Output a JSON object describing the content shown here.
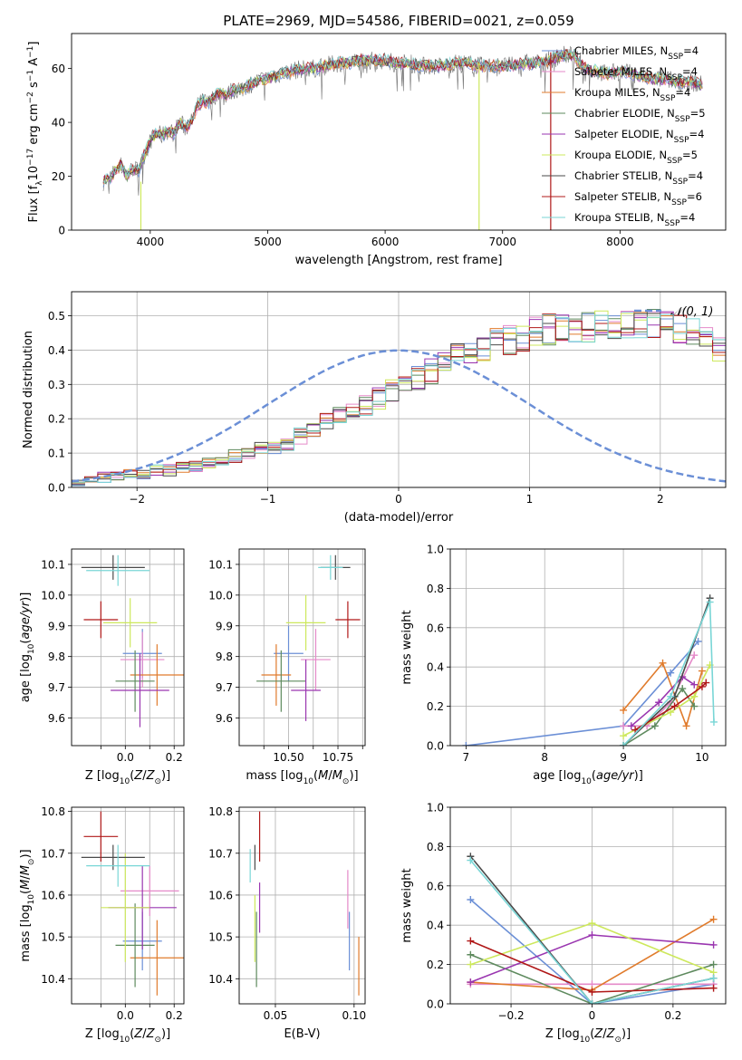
{
  "figure_title": "PLATE=2969, MJD=54586, FIBERID=0021, z=0.059",
  "colors": {
    "Chabrier MILES": "#6b8fd6",
    "Salpeter MILES": "#e58ac9",
    "Kroupa MILES": "#e07b2c",
    "Chabrier ELODIE": "#5e8a5e",
    "Salpeter ELODIE": "#9a36b0",
    "Kroupa ELODIE": "#cde85c",
    "Chabrier STELIB": "#4a4a4a",
    "Salpeter STELIB": "#b01818",
    "Kroupa STELIB": "#79d6d6",
    "gaussian": "#6b8fd6"
  },
  "chart_data": [
    {
      "id": "spectrum",
      "type": "line",
      "title": "PLATE=2969, MJD=54586, FIBERID=0021, z=0.059",
      "xlabel": "wavelength [Angstrom, rest frame]",
      "ylabel": "Flux [f_λ 10^-17 erg cm^-2 s^-1 A^-1]",
      "xlim": [
        3330,
        8900
      ],
      "ylim": [
        0,
        73
      ],
      "xticks": [
        4000,
        5000,
        6000,
        7000,
        8000
      ],
      "yticks": [
        0,
        20,
        40,
        60
      ],
      "grid": false,
      "legend_position": "top-right",
      "spectrum_x": [
        3600,
        3650,
        3700,
        3750,
        3800,
        3850,
        3900,
        3950,
        4000,
        4050,
        4100,
        4150,
        4200,
        4250,
        4300,
        4350,
        4400,
        4450,
        4500,
        4550,
        4600,
        4650,
        4700,
        4750,
        4800,
        4850,
        4900,
        4950,
        5000,
        5100,
        5200,
        5300,
        5400,
        5500,
        5600,
        5700,
        5800,
        5900,
        6000,
        6100,
        6200,
        6300,
        6400,
        6500,
        6600,
        6700,
        6800,
        6900,
        7000,
        7100,
        7200,
        7300,
        7400,
        7500,
        7600,
        7700,
        7800,
        7900,
        8000,
        8100,
        8200,
        8300,
        8400,
        8500,
        8600,
        8700
      ],
      "spectrum_y": [
        18,
        19,
        22,
        24,
        20,
        23,
        22,
        28,
        33,
        36,
        35,
        37,
        36,
        40,
        38,
        40,
        46,
        48,
        47,
        50,
        51,
        50,
        52,
        52,
        53,
        54,
        55,
        56,
        56,
        58,
        59,
        60,
        60,
        61,
        62,
        62,
        63,
        63,
        63,
        62,
        62,
        61,
        61,
        61,
        62,
        62,
        61,
        61,
        61,
        61,
        62,
        62,
        63,
        65,
        65,
        60,
        59,
        58,
        59,
        58,
        57,
        56,
        56,
        55,
        55,
        54
      ],
      "series": [
        {
          "name": "Chabrier MILES",
          "nssp": "4"
        },
        {
          "name": "Salpeter MILES",
          "nssp": "4"
        },
        {
          "name": "Kroupa MILES",
          "nssp": "4"
        },
        {
          "name": "Chabrier ELODIE",
          "nssp": "5"
        },
        {
          "name": "Salpeter ELODIE",
          "nssp": "4"
        },
        {
          "name": "Kroupa ELODIE",
          "nssp": "5"
        },
        {
          "name": "Chabrier STELIB",
          "nssp": "4"
        },
        {
          "name": "Salpeter STELIB",
          "nssp": "6"
        },
        {
          "name": "Kroupa STELIB",
          "nssp": "4"
        }
      ],
      "legend_nssp_label": "N",
      "legend_nssp_sub": "SSP",
      "spikes": [
        {
          "series": "Kroupa ELODIE",
          "x": 3920,
          "y_top": 18
        },
        {
          "series": "Kroupa ELODIE",
          "x": 6800,
          "y_top": 62
        },
        {
          "series": "Salpeter STELIB",
          "x": 7410,
          "y_top": 66
        }
      ]
    },
    {
      "id": "residuals",
      "type": "histogram",
      "xlabel": "(data-model)/error",
      "ylabel": "Normed distribution",
      "xlim": [
        -2.5,
        2.5
      ],
      "ylim": [
        0,
        0.57
      ],
      "xticks": [
        -2,
        -1,
        0,
        1,
        2
      ],
      "yticks": [
        0.0,
        0.1,
        0.2,
        0.3,
        0.4,
        0.5
      ],
      "grid": true,
      "legend": "𝒩(0, 1)",
      "legend_position": "top-right",
      "bin_width": 0.1,
      "bin_start": -2.5,
      "base_density": [
        0.02,
        0.02,
        0.03,
        0.03,
        0.04,
        0.04,
        0.05,
        0.05,
        0.06,
        0.06,
        0.07,
        0.08,
        0.09,
        0.1,
        0.11,
        0.12,
        0.13,
        0.15,
        0.17,
        0.19,
        0.21,
        0.23,
        0.24,
        0.26,
        0.28,
        0.3,
        0.32,
        0.34,
        0.36,
        0.38,
        0.4,
        0.41,
        0.42,
        0.43,
        0.44,
        0.45,
        0.46,
        0.46,
        0.47,
        0.47,
        0.47,
        0.47,
        0.48,
        0.48,
        0.48,
        0.47,
        0.46,
        0.45,
        0.43,
        0.41,
        0.38,
        0.35,
        0.32,
        0.3,
        0.28,
        0.26,
        0.24,
        0.22,
        0.2,
        0.18,
        0.16,
        0.14,
        0.12,
        0.1,
        0.09,
        0.08,
        0.08,
        0.07,
        0.07,
        0.06,
        0.06,
        0.05,
        0.05,
        0.05,
        0.04,
        0.04,
        0.03,
        0.03,
        0.03,
        0.02
      ],
      "gaussian": {
        "mean": 0,
        "sigma": 1
      }
    },
    {
      "id": "age-vs-Z",
      "type": "scatter",
      "xlabel": "Z [log10(Z/Z☉)]",
      "ylabel": "age [log10(age/yr)]",
      "xlim": [
        -0.22,
        0.24
      ],
      "ylim": [
        9.51,
        10.15
      ],
      "xticks": [
        -0.1,
        0.0,
        0.1,
        0.2
      ],
      "xticklabels": [
        "",
        "0.0",
        "",
        "0.2"
      ],
      "yticks": [
        9.6,
        9.7,
        9.8,
        9.9,
        10.0,
        10.1
      ],
      "grid": true,
      "points": [
        {
          "series": "Chabrier MILES",
          "x": 0.07,
          "xerr": 0.08,
          "y": 9.81,
          "yerr": 0.08
        },
        {
          "series": "Salpeter MILES",
          "x": 0.07,
          "xerr": 0.09,
          "y": 9.79,
          "yerr": 0.09
        },
        {
          "series": "Kroupa MILES",
          "x": 0.13,
          "xerr": 0.11,
          "y": 9.74,
          "yerr": 0.1
        },
        {
          "series": "Chabrier ELODIE",
          "x": 0.04,
          "xerr": 0.08,
          "y": 9.72,
          "yerr": 0.1
        },
        {
          "series": "Salpeter ELODIE",
          "x": 0.06,
          "xerr": 0.12,
          "y": 9.69,
          "yerr": 0.12
        },
        {
          "series": "Kroupa ELODIE",
          "x": 0.02,
          "xerr": 0.11,
          "y": 9.91,
          "yerr": 0.08
        },
        {
          "series": "Chabrier STELIB",
          "x": -0.05,
          "xerr": 0.13,
          "y": 10.09,
          "yerr": 0.04
        },
        {
          "series": "Salpeter STELIB",
          "x": -0.1,
          "xerr": 0.07,
          "y": 9.92,
          "yerr": 0.06
        },
        {
          "series": "Kroupa STELIB",
          "x": -0.03,
          "xerr": 0.13,
          "y": 10.08,
          "yerr": 0.05
        }
      ]
    },
    {
      "id": "age-vs-mass",
      "type": "scatter",
      "xlabel": "mass [log10(M/M☉)]",
      "ylabel": "",
      "xlim": [
        10.3,
        10.81
      ],
      "ylim": [
        9.51,
        10.15
      ],
      "xticks": [
        10.4,
        10.5,
        10.6,
        10.7,
        10.8
      ],
      "xticklabels": [
        "",
        "10.50",
        "",
        "10.75",
        ""
      ],
      "yticks": [
        9.6,
        9.7,
        9.8,
        9.9,
        10.0,
        10.1
      ],
      "grid": true,
      "points": [
        {
          "series": "Chabrier MILES",
          "x": 10.5,
          "xerr": 0.06,
          "y": 9.81,
          "yerr": 0.09
        },
        {
          "series": "Salpeter MILES",
          "x": 10.61,
          "xerr": 0.06,
          "y": 9.79,
          "yerr": 0.1
        },
        {
          "series": "Kroupa MILES",
          "x": 10.45,
          "xerr": 0.06,
          "y": 9.74,
          "yerr": 0.1
        },
        {
          "series": "Chabrier ELODIE",
          "x": 10.47,
          "xerr": 0.1,
          "y": 9.72,
          "yerr": 0.1
        },
        {
          "series": "Salpeter ELODIE",
          "x": 10.57,
          "xerr": 0.06,
          "y": 9.69,
          "yerr": 0.1
        },
        {
          "series": "Kroupa ELODIE",
          "x": 10.57,
          "xerr": 0.08,
          "y": 9.91,
          "yerr": 0.09
        },
        {
          "series": "Chabrier STELIB",
          "x": 10.69,
          "xerr": 0.06,
          "y": 10.09,
          "yerr": 0.04
        },
        {
          "series": "Salpeter STELIB",
          "x": 10.74,
          "xerr": 0.05,
          "y": 9.92,
          "yerr": 0.06
        },
        {
          "series": "Kroupa STELIB",
          "x": 10.67,
          "xerr": 0.05,
          "y": 10.09,
          "yerr": 0.04
        }
      ]
    },
    {
      "id": "weight-vs-age",
      "type": "line",
      "xlabel": "age [log10(age/yr)]",
      "ylabel": "mass weight",
      "xlim": [
        6.8,
        10.3
      ],
      "ylim": [
        0,
        1
      ],
      "xticks": [
        7,
        8,
        9,
        10
      ],
      "yticks": [
        0.0,
        0.2,
        0.4,
        0.6,
        0.8,
        1.0
      ],
      "grid": true,
      "series": [
        {
          "name": "Chabrier MILES",
          "x": [
            7.0,
            9.0,
            9.6,
            9.95
          ],
          "y": [
            0.0,
            0.1,
            0.37,
            0.53
          ]
        },
        {
          "name": "Salpeter MILES",
          "x": [
            9.0,
            9.3,
            9.6,
            9.9
          ],
          "y": [
            0.1,
            0.1,
            0.22,
            0.46
          ]
        },
        {
          "name": "Kroupa MILES",
          "x": [
            9.0,
            9.5,
            9.8,
            10.0
          ],
          "y": [
            0.18,
            0.42,
            0.1,
            0.38
          ]
        },
        {
          "name": "Chabrier ELODIE",
          "x": [
            9.0,
            9.4,
            9.75,
            9.9
          ],
          "y": [
            0.0,
            0.1,
            0.29,
            0.2
          ]
        },
        {
          "name": "Salpeter ELODIE",
          "x": [
            9.1,
            9.45,
            9.75,
            9.9
          ],
          "y": [
            0.1,
            0.22,
            0.35,
            0.31
          ]
        },
        {
          "name": "Kroupa ELODIE",
          "x": [
            9.0,
            9.6,
            9.9,
            10.1
          ],
          "y": [
            0.05,
            0.17,
            0.25,
            0.41
          ]
        },
        {
          "name": "Chabrier STELIB",
          "x": [
            9.0,
            9.65,
            10.1
          ],
          "y": [
            0.0,
            0.25,
            0.75
          ]
        },
        {
          "name": "Salpeter STELIB",
          "x": [
            9.15,
            9.65,
            10.0,
            10.05
          ],
          "y": [
            0.08,
            0.2,
            0.3,
            0.32
          ]
        },
        {
          "name": "Kroupa STELIB",
          "x": [
            9.0,
            9.6,
            10.1,
            10.15
          ],
          "y": [
            0.0,
            0.25,
            0.73,
            0.12
          ]
        }
      ]
    },
    {
      "id": "mass-vs-Z",
      "type": "scatter",
      "xlabel": "Z [log10(Z/Z☉)]",
      "ylabel": "mass [log10(M/M☉)]",
      "xlim": [
        -0.22,
        0.24
      ],
      "ylim": [
        10.34,
        10.81
      ],
      "xticks": [
        -0.1,
        0.0,
        0.1,
        0.2
      ],
      "xticklabels": [
        "",
        "0.0",
        "",
        "0.2"
      ],
      "yticks": [
        10.4,
        10.5,
        10.6,
        10.7,
        10.8
      ],
      "grid": true,
      "points": [
        {
          "series": "Chabrier MILES",
          "x": 0.07,
          "xerr": 0.08,
          "y": 10.49,
          "yerr": 0.07
        },
        {
          "series": "Salpeter MILES",
          "x": 0.1,
          "xerr": 0.12,
          "y": 10.61,
          "yerr": 0.06
        },
        {
          "series": "Kroupa MILES",
          "x": 0.13,
          "xerr": 0.11,
          "y": 10.45,
          "yerr": 0.09
        },
        {
          "series": "Chabrier ELODIE",
          "x": 0.04,
          "xerr": 0.08,
          "y": 10.48,
          "yerr": 0.1
        },
        {
          "series": "Salpeter ELODIE",
          "x": 0.07,
          "xerr": 0.14,
          "y": 10.57,
          "yerr": 0.1
        },
        {
          "series": "Kroupa ELODIE",
          "x": 0.0,
          "xerr": 0.1,
          "y": 10.57,
          "yerr": 0.13
        },
        {
          "series": "Chabrier STELIB",
          "x": -0.05,
          "xerr": 0.13,
          "y": 10.69,
          "yerr": 0.03
        },
        {
          "series": "Salpeter STELIB",
          "x": -0.1,
          "xerr": 0.07,
          "y": 10.74,
          "yerr": 0.06
        },
        {
          "series": "Kroupa STELIB",
          "x": -0.03,
          "xerr": 0.13,
          "y": 10.67,
          "yerr": 0.05
        }
      ]
    },
    {
      "id": "mass-vs-EBV",
      "type": "scatter",
      "xlabel": "E(B-V)",
      "ylabel": "",
      "xlim": [
        0.027,
        0.107
      ],
      "ylim": [
        10.34,
        10.81
      ],
      "xticks": [
        0.05,
        0.1
      ],
      "xticklabels": [
        "0.05",
        "0.10"
      ],
      "yticks": [
        10.4,
        10.5,
        10.6,
        10.7,
        10.8
      ],
      "grid": true,
      "points": [
        {
          "series": "Chabrier MILES",
          "x": 0.097,
          "xerr": 0,
          "y": 10.49,
          "yerr": 0.07
        },
        {
          "series": "Salpeter MILES",
          "x": 0.096,
          "xerr": 0,
          "y": 10.59,
          "yerr": 0.07
        },
        {
          "series": "Kroupa MILES",
          "x": 0.103,
          "xerr": 0,
          "y": 10.43,
          "yerr": 0.07
        },
        {
          "series": "Chabrier ELODIE",
          "x": 0.038,
          "xerr": 0,
          "y": 10.47,
          "yerr": 0.09
        },
        {
          "series": "Salpeter ELODIE",
          "x": 0.04,
          "xerr": 0,
          "y": 10.57,
          "yerr": 0.06
        },
        {
          "series": "Kroupa ELODIE",
          "x": 0.037,
          "xerr": 0,
          "y": 10.52,
          "yerr": 0.08
        },
        {
          "series": "Chabrier STELIB",
          "x": 0.037,
          "xerr": 0,
          "y": 10.69,
          "yerr": 0.03
        },
        {
          "series": "Salpeter STELIB",
          "x": 0.04,
          "xerr": 0,
          "y": 10.74,
          "yerr": 0.06
        },
        {
          "series": "Kroupa STELIB",
          "x": 0.034,
          "xerr": 0,
          "y": 10.67,
          "yerr": 0.04
        }
      ]
    },
    {
      "id": "weight-vs-Z",
      "type": "line",
      "xlabel": "Z [log10(Z/Z☉)]",
      "ylabel": "mass weight",
      "xlim": [
        -0.35,
        0.33
      ],
      "ylim": [
        0,
        1
      ],
      "xticks": [
        -0.2,
        0.0,
        0.2
      ],
      "yticks": [
        0.0,
        0.2,
        0.4,
        0.6,
        0.8,
        1.0
      ],
      "grid": true,
      "series": [
        {
          "name": "Chabrier MILES",
          "x": [
            -0.3,
            0.0,
            0.3
          ],
          "y": [
            0.53,
            0.0,
            0.1
          ]
        },
        {
          "name": "Salpeter MILES",
          "x": [
            -0.3,
            0.0,
            0.3
          ],
          "y": [
            0.1,
            0.1,
            0.1
          ]
        },
        {
          "name": "Kroupa MILES",
          "x": [
            -0.3,
            0.0,
            0.3
          ],
          "y": [
            0.11,
            0.07,
            0.43
          ]
        },
        {
          "name": "Chabrier ELODIE",
          "x": [
            -0.3,
            0.0,
            0.3
          ],
          "y": [
            0.25,
            0.0,
            0.2
          ]
        },
        {
          "name": "Salpeter ELODIE",
          "x": [
            -0.3,
            0.0,
            0.3
          ],
          "y": [
            0.11,
            0.35,
            0.3
          ]
        },
        {
          "name": "Kroupa ELODIE",
          "x": [
            -0.3,
            0.0,
            0.3
          ],
          "y": [
            0.2,
            0.41,
            0.16
          ]
        },
        {
          "name": "Chabrier STELIB",
          "x": [
            -0.3,
            0.0,
            0.3
          ],
          "y": [
            0.75,
            0.0,
            0.13
          ]
        },
        {
          "name": "Salpeter STELIB",
          "x": [
            -0.3,
            0.0,
            0.3
          ],
          "y": [
            0.32,
            0.06,
            0.08
          ]
        },
        {
          "name": "Kroupa STELIB",
          "x": [
            -0.3,
            0.0,
            0.3
          ],
          "y": [
            0.73,
            0.0,
            0.13
          ]
        }
      ]
    }
  ]
}
